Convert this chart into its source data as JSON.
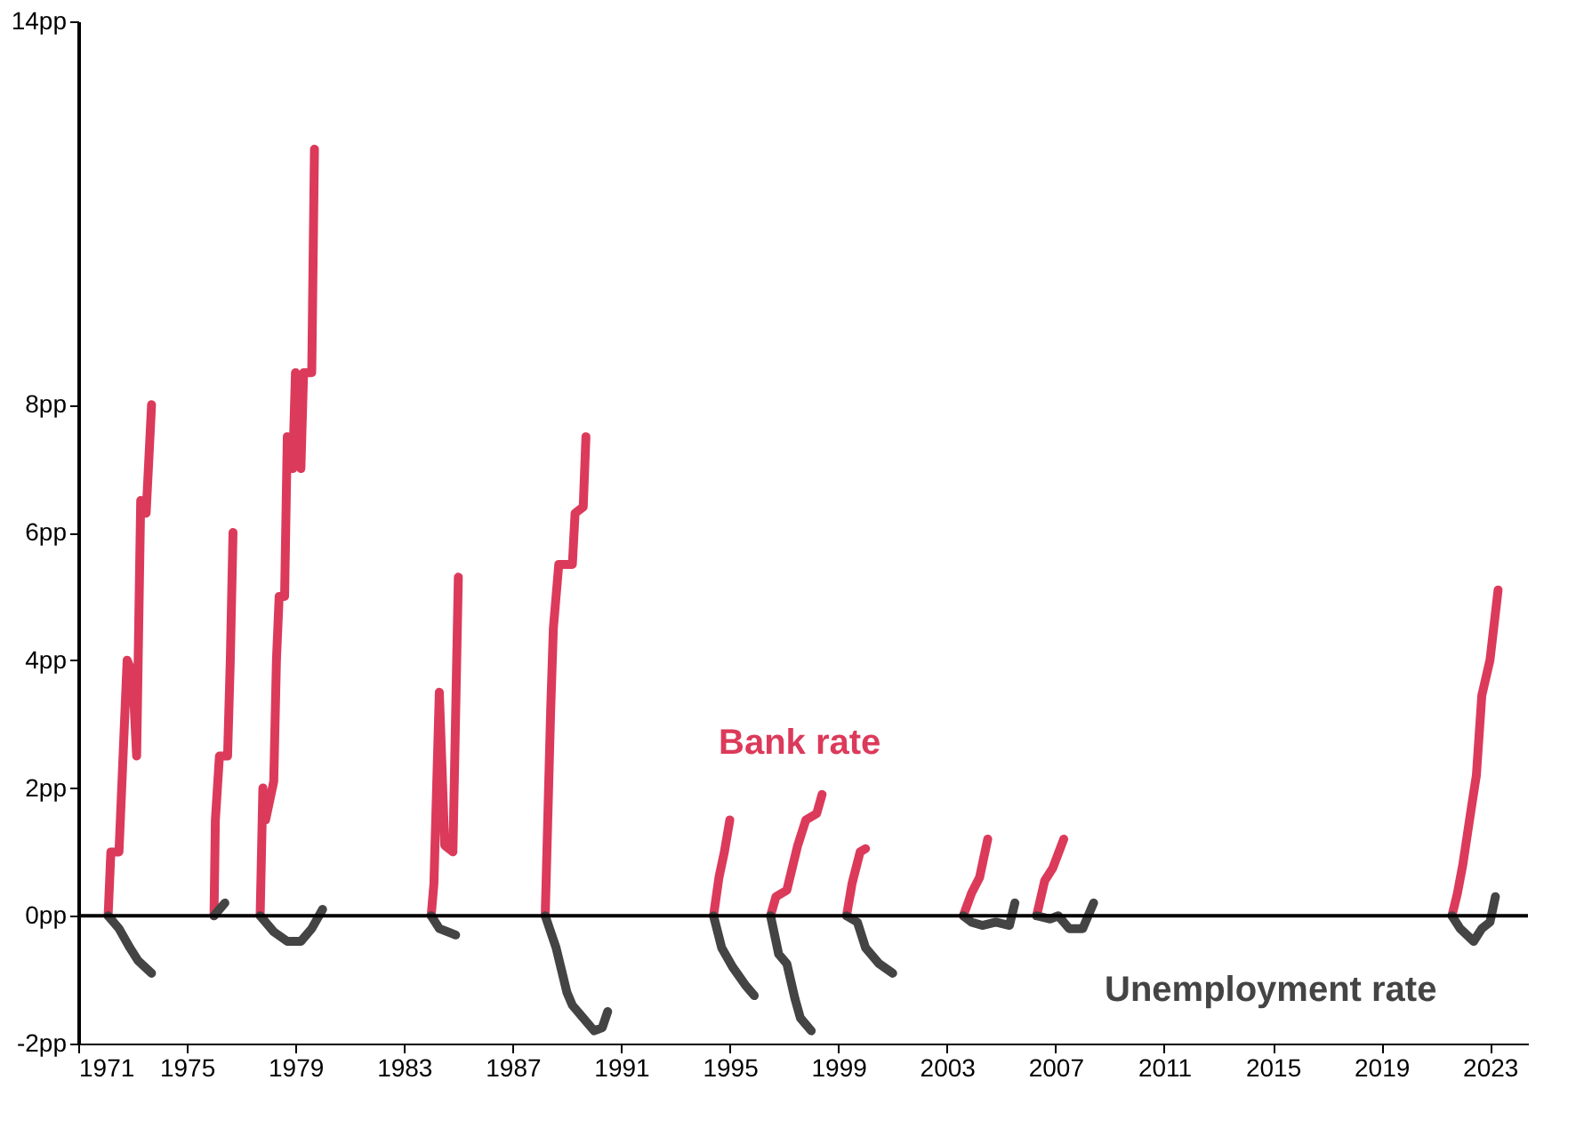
{
  "chart_data": {
    "type": "line",
    "xlim": [
      1971,
      2024.4
    ],
    "xticks": [
      1971,
      1975,
      1979,
      1983,
      1987,
      1991,
      1995,
      1999,
      2003,
      2007,
      2011,
      2015,
      2019,
      2023
    ],
    "ylim": [
      -2,
      14
    ],
    "yticks": [
      {
        "value": -2,
        "label": "-2pp"
      },
      {
        "value": 0,
        "label": "0pp"
      },
      {
        "value": 2,
        "label": "2pp"
      },
      {
        "value": 4,
        "label": "4pp"
      },
      {
        "value": 6,
        "label": "6pp"
      },
      {
        "value": 8,
        "label": "8pp"
      },
      {
        "value": 14,
        "label": "14pp"
      }
    ],
    "grid": false,
    "line_style": "solid",
    "marker": "none",
    "ref_lines": [
      {
        "axis": "y",
        "value": 0,
        "color": "#000000"
      }
    ],
    "series": [
      {
        "name": "Bank rate",
        "color": "#dc3a5a",
        "x": [
          1972.1,
          1972.2,
          1972.5,
          1972.8,
          1973.0,
          1973.15,
          1973.3,
          1973.5,
          1973.7,
          1973.8,
          1976.0,
          1976.05,
          1976.2,
          1976.5,
          1976.6,
          1976.7,
          1976.8,
          1977.7,
          1977.8,
          1977.9,
          1978.2,
          1978.3,
          1978.4,
          1978.6,
          1978.7,
          1978.9,
          1979.0,
          1979.2,
          1979.3,
          1979.6,
          1979.7,
          1979.8,
          1984.0,
          1984.1,
          1984.3,
          1984.5,
          1984.8,
          1985.0,
          1985.1,
          1988.2,
          1988.4,
          1988.5,
          1988.7,
          1989.2,
          1989.3,
          1989.6,
          1989.7,
          1989.8,
          1994.4,
          1994.6,
          1994.8,
          1995.0,
          1995.1,
          1996.5,
          1996.7,
          1997.1,
          1997.5,
          1997.8,
          1998.2,
          1998.4,
          1998.5,
          1999.3,
          1999.5,
          1999.8,
          2000.0,
          2000.1,
          2003.6,
          2003.9,
          2004.2,
          2004.5,
          2004.6,
          2006.3,
          2006.6,
          2006.9,
          2007.3,
          2007.4,
          2021.6,
          2021.8,
          2022.0,
          2022.3,
          2022.5,
          2022.7,
          2023.0,
          2023.3
        ],
        "values": [
          0,
          1,
          1,
          4,
          3.8,
          2.5,
          6.5,
          6.3,
          8,
          null,
          0,
          1.5,
          2.5,
          2.5,
          4,
          6,
          null,
          0,
          2,
          1.5,
          2.1,
          4,
          5,
          5,
          7.5,
          7,
          8.5,
          7,
          8.5,
          8.5,
          12,
          null,
          0,
          0.5,
          3.5,
          1.1,
          1,
          5.3,
          null,
          0,
          3.2,
          4.5,
          5.5,
          5.5,
          6.3,
          6.4,
          7.5,
          null,
          0,
          0.6,
          1,
          1.5,
          null,
          0,
          0.3,
          0.4,
          1.1,
          1.5,
          1.6,
          1.9,
          null,
          0,
          0.5,
          1,
          1.05,
          null,
          0,
          0.35,
          0.6,
          1.2,
          null,
          0,
          0.55,
          0.75,
          1.2,
          null,
          0,
          0.35,
          0.8,
          1.65,
          2.2,
          3.45,
          4,
          5.1
        ]
      },
      {
        "name": "Unemployment rate",
        "color": "#444444",
        "x": [
          1972.1,
          1972.5,
          1972.9,
          1973.2,
          1973.7,
          1973.8,
          1976.0,
          1976.4,
          1976.5,
          1977.7,
          1978.2,
          1978.7,
          1979.2,
          1979.6,
          1980.0,
          1980.1,
          1984.0,
          1984.3,
          1984.9,
          1985.0,
          1988.2,
          1988.6,
          1989.0,
          1989.2,
          1989.6,
          1990.0,
          1990.3,
          1990.5,
          1990.6,
          1994.4,
          1994.7,
          1995.1,
          1995.6,
          1995.9,
          1996.0,
          1996.5,
          1996.8,
          1997.1,
          1997.4,
          1997.6,
          1998.0,
          1998.1,
          1999.3,
          1999.7,
          2000.0,
          2000.5,
          2001.0,
          2001.1,
          2003.6,
          2003.9,
          2004.3,
          2004.8,
          2005.3,
          2005.5,
          2005.6,
          2006.3,
          2006.8,
          2007.1,
          2007.5,
          2008.0,
          2008.4,
          2008.5,
          2021.6,
          2021.9,
          2022.4,
          2022.7,
          2023.0,
          2023.2
        ],
        "values": [
          0,
          -0.2,
          -0.5,
          -0.7,
          -0.9,
          null,
          0,
          0.2,
          null,
          0,
          -0.25,
          -0.4,
          -0.4,
          -0.2,
          0.1,
          null,
          0,
          -0.2,
          -0.3,
          null,
          0,
          -0.5,
          -1.2,
          -1.4,
          -1.6,
          -1.8,
          -1.75,
          -1.5,
          null,
          0,
          -0.5,
          -0.8,
          -1.1,
          -1.25,
          null,
          0,
          -0.6,
          -0.75,
          -1.3,
          -1.6,
          -1.8,
          null,
          0,
          -0.1,
          -0.5,
          -0.75,
          -0.9,
          null,
          0,
          -0.1,
          -0.15,
          -0.1,
          -0.15,
          0.2,
          null,
          0,
          -0.05,
          0,
          -0.2,
          -0.2,
          0.2,
          null,
          0,
          -0.2,
          -0.4,
          -0.2,
          -0.1,
          0.3
        ]
      }
    ]
  }
}
